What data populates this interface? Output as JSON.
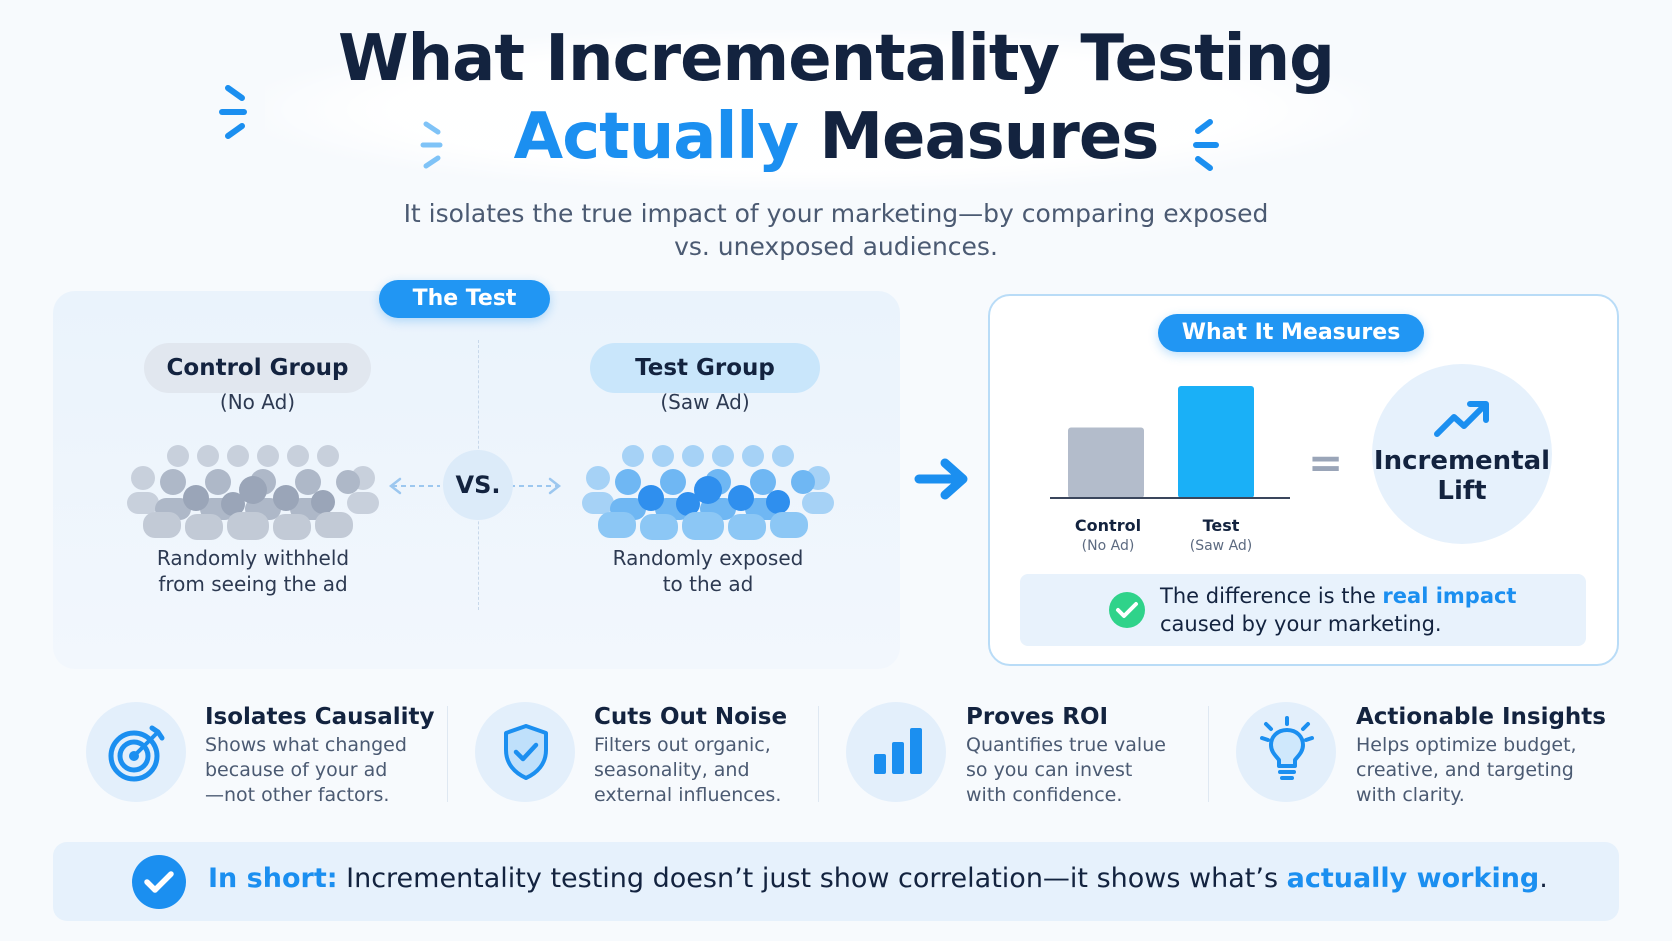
{
  "title": {
    "line1": "What Incrementality Testing",
    "line2_accent": "Actually",
    "line2_rest": " Measures"
  },
  "subtitle": {
    "line1": "It isolates the true impact of your marketing—by comparing exposed",
    "line2": "vs. unexposed audiences."
  },
  "test_panel": {
    "label": "The Test",
    "control": {
      "title": "Control Group",
      "subtitle": "(No Ad)",
      "desc_line1": "Randomly withheld",
      "desc_line2": "from seeing the ad"
    },
    "vs_label": "VS.",
    "test": {
      "title": "Test Group",
      "subtitle": "(Saw Ad)",
      "desc_line1": "Randomly exposed",
      "desc_line2": "to the ad"
    }
  },
  "measures_panel": {
    "label": "What It Measures",
    "bars": [
      {
        "label": "Control",
        "sub": "(No Ad)",
        "relative_value": 0.63,
        "color": "#b3bccb"
      },
      {
        "label": "Test",
        "sub": "(Saw Ad)",
        "relative_value": 1.0,
        "color": "#1ab0f7"
      }
    ],
    "equals": "=",
    "result_line1": "Incremental",
    "result_line2": "Lift",
    "diff_line1_pre": "The difference is the ",
    "diff_line1_hl": "real impact",
    "diff_line2": "caused by your marketing."
  },
  "features": [
    {
      "icon": "target-icon",
      "title": "Isolates Causality",
      "lines": [
        "Shows what changed",
        "because of your ad",
        "—not other factors."
      ]
    },
    {
      "icon": "shield-check-icon",
      "title": "Cuts Out Noise",
      "lines": [
        "Filters out organic,",
        "seasonality, and",
        "external influences."
      ]
    },
    {
      "icon": "bar-chart-icon",
      "title": "Proves ROI",
      "lines": [
        "Quantifies true value",
        "so you can invest",
        "with confidence."
      ]
    },
    {
      "icon": "lightbulb-icon",
      "title": "Actionable Insights",
      "lines": [
        "Helps optimize budget,",
        "creative, and targeting",
        "with clarity."
      ]
    }
  ],
  "summary": {
    "lead": "In short:",
    "text": " Incrementality testing doesn’t just show correlation—it shows what’s ",
    "highlight": "actually working",
    "end": "."
  },
  "colors": {
    "accent": "#1b8ff0",
    "dark": "#13233f",
    "success": "#2fd38a"
  }
}
